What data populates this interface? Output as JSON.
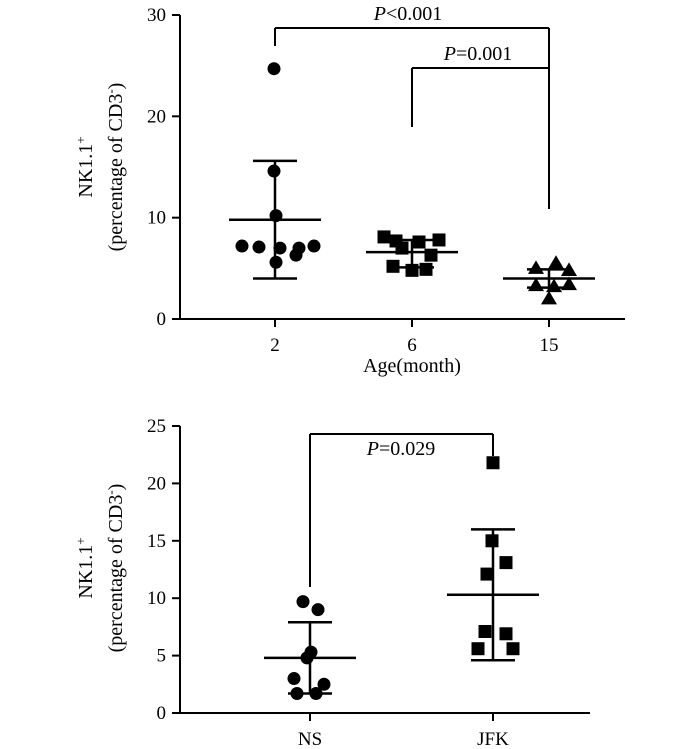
{
  "chart_data": [
    {
      "type": "scatter",
      "ylabel_main": "NK1.1",
      "ylabel_main_sup": "+",
      "ylabel_sub_pre": "(percentage of CD3",
      "ylabel_sub_sup": "-",
      "ylabel_sub_post": ")",
      "xlabel": "Age(month)",
      "ylim": [
        0,
        30
      ],
      "yticks": [
        "0",
        "10",
        "20",
        "30"
      ],
      "categories": [
        "2",
        "6",
        "15"
      ],
      "series": [
        {
          "category": "2",
          "marker": "circle",
          "mean": 9.8,
          "sd_low": 4.0,
          "sd_high": 15.6,
          "points": [
            24.7,
            14.6,
            10.2,
            7.2,
            7.1,
            7.0,
            7.2,
            7.0,
            5.6,
            6.3
          ]
        },
        {
          "category": "6",
          "marker": "square",
          "mean": 6.6,
          "sd_low": 5.1,
          "sd_high": 7.8,
          "points": [
            8.1,
            7.7,
            7.6,
            7.8,
            7.0,
            6.3,
            5.2,
            4.8,
            4.9
          ]
        },
        {
          "category": "15",
          "marker": "triangle",
          "mean": 4.0,
          "sd_low": 3.1,
          "sd_high": 4.9,
          "points": [
            5.5,
            5.0,
            4.8,
            3.3,
            3.2,
            3.4,
            2.0
          ]
        }
      ],
      "significance": [
        {
          "from": "2",
          "to": "15",
          "label_italic": "P",
          "label_rest": "<0.001"
        },
        {
          "from": "6",
          "to": "15",
          "label_italic": "P",
          "label_rest": "=0.001"
        }
      ]
    },
    {
      "type": "scatter",
      "ylabel_main": "NK1.1",
      "ylabel_main_sup": "+",
      "ylabel_sub_pre": "(percentage of CD3",
      "ylabel_sub_sup": "-",
      "ylabel_sub_post": ")",
      "xlabel": "",
      "ylim": [
        0,
        25
      ],
      "yticks": [
        "0",
        "5",
        "10",
        "15",
        "20",
        "25"
      ],
      "categories": [
        "NS",
        "JFK"
      ],
      "series": [
        {
          "category": "NS",
          "marker": "circle",
          "mean": 4.8,
          "sd_low": 1.7,
          "sd_high": 7.9,
          "points": [
            9.7,
            9.0,
            5.3,
            4.8,
            3.0,
            2.5,
            1.7,
            1.7
          ]
        },
        {
          "category": "JFK",
          "marker": "square",
          "mean": 10.3,
          "sd_low": 4.6,
          "sd_high": 16.0,
          "points": [
            21.8,
            15.0,
            13.1,
            12.1,
            7.1,
            6.9,
            5.6,
            5.6
          ]
        }
      ],
      "significance": [
        {
          "from": "NS",
          "to": "JFK",
          "label_italic": "P",
          "label_rest": "=0.029"
        }
      ]
    }
  ]
}
